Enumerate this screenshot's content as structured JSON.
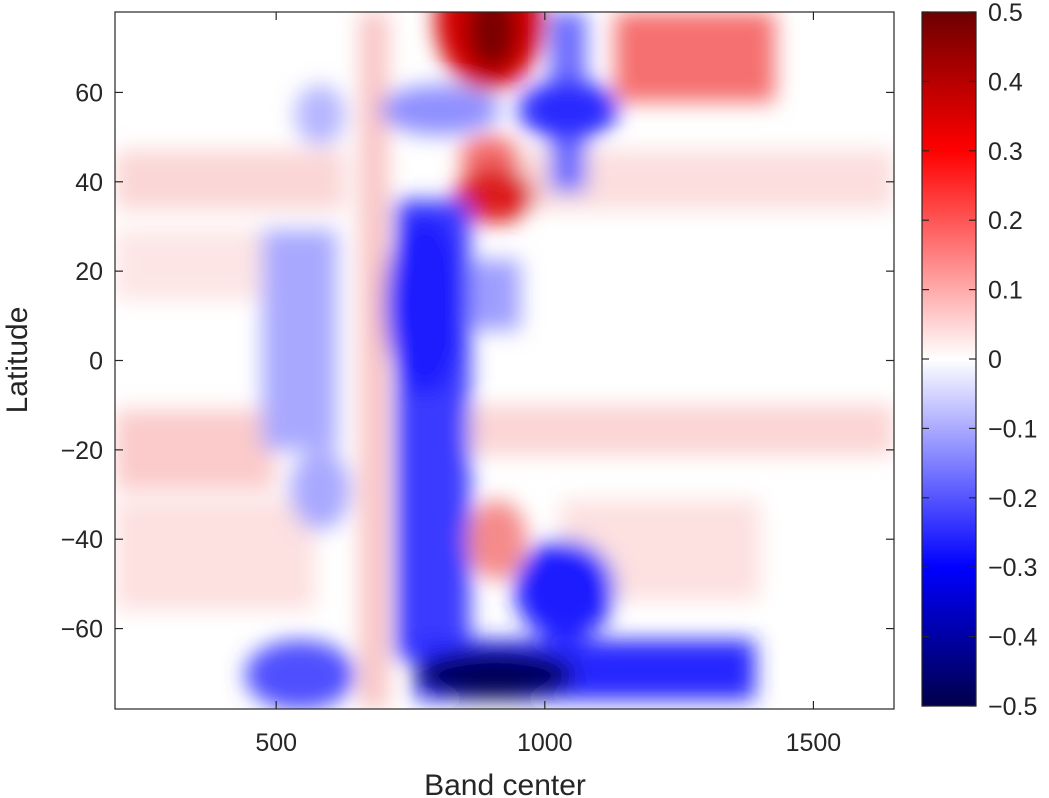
{
  "chart_data": {
    "type": "heatmap",
    "title": "",
    "xlabel": "Band center",
    "ylabel": "Latitude",
    "xlim": [
      200,
      1650
    ],
    "ylim": [
      -78,
      78
    ],
    "xticks": [
      500,
      1000,
      1500
    ],
    "yticks": [
      -60,
      -40,
      -20,
      0,
      20,
      40,
      60
    ],
    "grid": false,
    "colormap": {
      "name": "blue-white-red",
      "low": "#00004a",
      "mid_low": "#0000ff",
      "mid": "#ffffff",
      "mid_high": "#ff0000",
      "high": "#6e0000"
    },
    "colorbar": {
      "limits": [
        -0.5,
        0.5
      ],
      "ticks": [
        0.5,
        0.4,
        0.3,
        0.2,
        0.1,
        0,
        -0.1,
        -0.2,
        -0.3,
        -0.4,
        -0.5
      ],
      "tick_labels": [
        "0.5",
        "0.4",
        "0.3",
        "0.2",
        "0.1",
        "0",
        "−0.1",
        "−0.2",
        "−0.3",
        "−0.4",
        "−0.5"
      ]
    },
    "x_labels": [
      "500",
      "1000",
      "1500"
    ],
    "y_labels": [
      "−60",
      "−40",
      "−20",
      "0",
      "20",
      "40",
      "60"
    ],
    "features": [
      {
        "x": 900,
        "y": 72,
        "value": 0.5
      },
      {
        "x": 1200,
        "y": 67,
        "value": 0.2
      },
      {
        "x": 1030,
        "y": 55,
        "value": -0.3
      },
      {
        "x": 900,
        "y": 37,
        "value": 0.35
      },
      {
        "x": 890,
        "y": 47,
        "value": 0.15
      },
      {
        "x": 780,
        "y": 10,
        "value": -0.25
      },
      {
        "x": 780,
        "y": -30,
        "value": -0.2
      },
      {
        "x": 1030,
        "y": -55,
        "value": -0.35
      },
      {
        "x": 900,
        "y": -70,
        "value": -0.5
      },
      {
        "x": 560,
        "y": -70,
        "value": -0.25
      },
      {
        "x": 540,
        "y": 5,
        "value": -0.12
      },
      {
        "x": 900,
        "y": -42,
        "value": 0.15
      },
      {
        "x": 380,
        "y": -20,
        "value": 0.15
      },
      {
        "x": 1250,
        "y": 37,
        "value": 0.12
      }
    ]
  }
}
